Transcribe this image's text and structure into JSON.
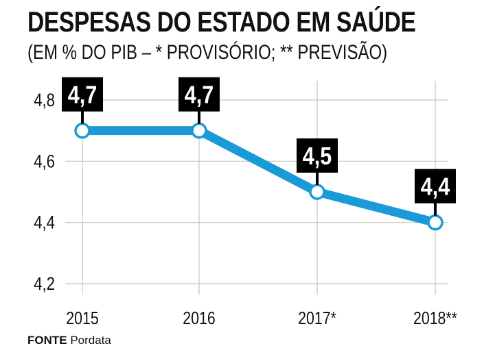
{
  "title": "DESPESAS DO ESTADO EM SAÚDE",
  "subtitle": "(EM % DO PIB – * PROVISÓRIO; ** PREVISÃO)",
  "source": {
    "key": "FONTE",
    "value": "Pordata"
  },
  "colors": {
    "line": "#1a9ad6",
    "label_box": "#000000",
    "label_text": "#ffffff",
    "grid": "#c4c4c4",
    "text": "#111111"
  },
  "chart_data": {
    "type": "line",
    "categories": [
      "2015",
      "2016",
      "2017*",
      "2018**"
    ],
    "values": [
      4.7,
      4.7,
      4.5,
      4.4
    ],
    "data_labels": [
      "4,7",
      "4,7",
      "4,5",
      "4,4"
    ],
    "y_ticks": [
      4.2,
      4.4,
      4.6,
      4.8
    ],
    "y_tick_labels": [
      "4,2",
      "4,4",
      "4,6",
      "4,8"
    ],
    "ylim": [
      4.2,
      4.8
    ],
    "grid": true,
    "legend": "none"
  }
}
